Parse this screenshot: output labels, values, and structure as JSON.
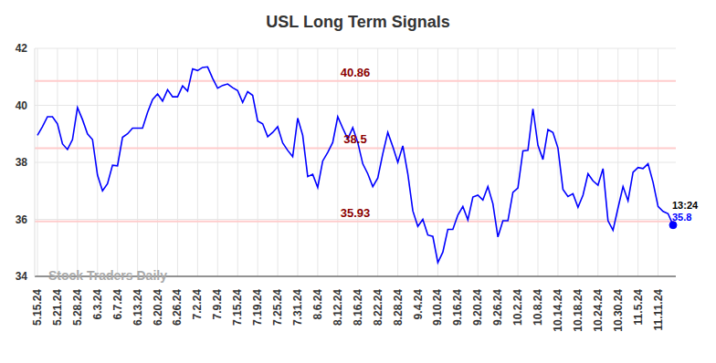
{
  "chart_data": {
    "type": "line",
    "title": "USL Long Term Signals",
    "categories": [
      "5.15.24",
      null,
      null,
      null,
      "5.21.24",
      null,
      null,
      null,
      "5.28.24",
      null,
      null,
      null,
      "6.3.24",
      null,
      null,
      null,
      "6.7.24",
      null,
      null,
      null,
      "6.13.24",
      null,
      null,
      null,
      "6.20.24",
      null,
      null,
      null,
      "6.26.24",
      null,
      null,
      null,
      "7.2.24",
      null,
      null,
      null,
      "7.9.24",
      null,
      null,
      null,
      "7.15.24",
      null,
      null,
      null,
      "7.19.24",
      null,
      null,
      null,
      "7.25.24",
      null,
      null,
      null,
      "7.31.24",
      null,
      null,
      null,
      "8.6.24",
      null,
      null,
      null,
      "8.12.24",
      null,
      null,
      null,
      "8.16.24",
      null,
      null,
      null,
      "8.22.24",
      null,
      null,
      null,
      "8.28.24",
      null,
      null,
      null,
      "9.4.24",
      null,
      null,
      null,
      "9.10.24",
      null,
      null,
      null,
      "9.16.24",
      null,
      null,
      null,
      "9.20.24",
      null,
      null,
      null,
      "9.26.24",
      null,
      null,
      null,
      "10.2.24",
      null,
      null,
      null,
      "10.8.24",
      null,
      null,
      null,
      "10.14.24",
      null,
      null,
      null,
      "10.18.24",
      null,
      null,
      null,
      "10.24.24",
      null,
      null,
      null,
      "10.30.24",
      null,
      null,
      null,
      "11.5.24",
      null,
      null,
      null,
      "11.11.24",
      null,
      null,
      null
    ],
    "values": [
      38.95,
      39.25,
      39.6,
      39.6,
      39.35,
      38.65,
      38.45,
      38.8,
      39.92,
      39.5,
      39.0,
      38.8,
      37.55,
      37.0,
      37.25,
      37.9,
      37.88,
      38.88,
      39.0,
      39.2,
      39.2,
      39.2,
      39.75,
      40.2,
      40.4,
      40.15,
      40.55,
      40.3,
      40.3,
      40.68,
      40.5,
      41.28,
      41.22,
      41.33,
      41.35,
      40.95,
      40.6,
      40.7,
      40.75,
      40.62,
      40.52,
      40.1,
      40.48,
      40.35,
      39.45,
      39.35,
      38.9,
      39.05,
      39.25,
      38.68,
      38.42,
      38.2,
      39.55,
      38.95,
      37.5,
      37.58,
      37.12,
      38.05,
      38.35,
      38.7,
      39.6,
      39.2,
      38.82,
      39.22,
      38.7,
      37.95,
      37.6,
      37.15,
      37.45,
      38.3,
      39.05,
      38.55,
      38.0,
      38.58,
      37.6,
      36.3,
      35.75,
      36.0,
      35.45,
      35.4,
      34.48,
      34.85,
      35.65,
      35.65,
      36.15,
      36.45,
      35.98,
      36.78,
      36.85,
      36.68,
      37.15,
      36.55,
      35.38,
      35.95,
      35.95,
      36.95,
      37.1,
      38.4,
      38.42,
      39.88,
      38.6,
      38.1,
      39.15,
      39.05,
      38.5,
      37.05,
      36.8,
      36.9,
      36.42,
      36.85,
      37.6,
      37.35,
      37.2,
      37.78,
      35.95,
      35.62,
      36.4,
      37.15,
      36.65,
      37.65,
      37.82,
      37.78,
      37.95,
      37.3,
      36.45,
      36.28,
      36.2,
      35.8
    ],
    "color": "#0000ff",
    "ylim": [
      34,
      42
    ],
    "yticks": [
      34,
      36,
      38,
      40,
      42
    ],
    "grid": true,
    "levels": [
      40.86,
      38.5,
      35.93
    ],
    "annotations": {
      "time": "13:24",
      "watermark": "Stock Traders Daily"
    }
  }
}
